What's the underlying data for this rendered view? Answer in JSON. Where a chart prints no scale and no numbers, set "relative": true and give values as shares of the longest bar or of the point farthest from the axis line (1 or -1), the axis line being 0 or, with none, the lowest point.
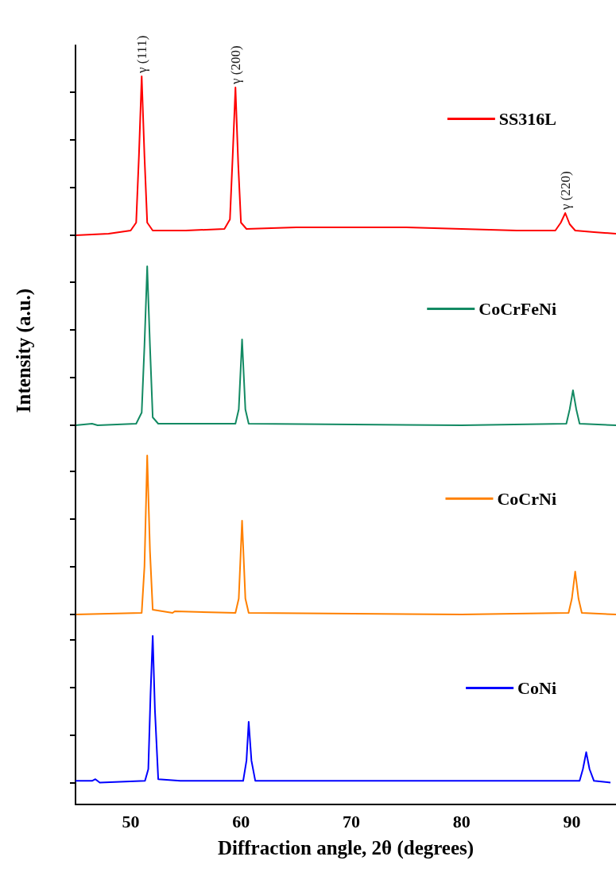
{
  "chart_data": [
    {
      "type": "line",
      "relative": true,
      "xlim": [
        45,
        94
      ],
      "legend": "right",
      "marker": "none",
      "grid": false,
      "tick_labels": false,
      "annotations": [
        {
          "text": "γ (111)",
          "x": 51.0,
          "y": 1
        },
        {
          "text": "γ (200)",
          "x": 59.5,
          "y": 0.93
        },
        {
          "text": "γ (220)",
          "x": 89.4,
          "y": 0.14
        }
      ],
      "series": [
        {
          "name": "SS316L",
          "color": "#ff0000",
          "x": [
            45,
            48,
            50,
            50.5,
            50.75,
            51.0,
            51.25,
            51.5,
            52,
            55,
            58.5,
            59,
            59.25,
            59.5,
            59.75,
            60,
            60.5,
            65,
            70,
            75,
            80,
            85,
            88.5,
            89,
            89.4,
            89.8,
            90.3,
            92,
            94
          ],
          "values": [
            0.0,
            0.01,
            0.03,
            0.08,
            0.5,
            1,
            0.5,
            0.08,
            0.03,
            0.03,
            0.04,
            0.1,
            0.5,
            0.93,
            0.45,
            0.08,
            0.04,
            0.05,
            0.05,
            0.05,
            0.04,
            0.03,
            0.03,
            0.08,
            0.14,
            0.07,
            0.03,
            0.02,
            0.01
          ]
        }
      ]
    },
    {
      "type": "line",
      "relative": true,
      "xlim": [
        45,
        94
      ],
      "legend": "right",
      "marker": "none",
      "grid": false,
      "tick_labels": false,
      "ylabel": "Intensity (a.u.)",
      "series": [
        {
          "name": "CoCrFeNi",
          "color": "#138a63",
          "x": [
            45,
            46.5,
            47,
            50.5,
            51,
            51.25,
            51.5,
            51.75,
            52,
            52.5,
            59.5,
            59.8,
            60.1,
            60.4,
            60.7,
            80,
            89.5,
            89.8,
            90.1,
            90.4,
            90.7,
            94
          ],
          "values": [
            0,
            0.01,
            0,
            0.01,
            0.08,
            0.5,
            1,
            0.5,
            0.05,
            0.01,
            0.01,
            0.1,
            0.54,
            0.1,
            0.01,
            0,
            0.01,
            0.1,
            0.22,
            0.1,
            0.01,
            0
          ]
        }
      ]
    },
    {
      "type": "line",
      "relative": true,
      "xlim": [
        45,
        94
      ],
      "legend": "right",
      "marker": "none",
      "grid": false,
      "tick_labels": false,
      "series": [
        {
          "name": "CoCrNi",
          "color": "#ff8000",
          "x": [
            45,
            51.0,
            51.25,
            51.5,
            51.75,
            52,
            53.8,
            54,
            59.5,
            59.8,
            60.1,
            60.4,
            60.7,
            80,
            89.7,
            90.0,
            90.3,
            90.6,
            90.9,
            94
          ],
          "values": [
            0,
            0.01,
            0.3,
            1,
            0.4,
            0.03,
            0.01,
            0.02,
            0.01,
            0.1,
            0.59,
            0.1,
            0.01,
            0,
            0.01,
            0.1,
            0.27,
            0.1,
            0.01,
            0
          ]
        }
      ]
    },
    {
      "type": "line",
      "relative": true,
      "xlim": [
        45,
        94
      ],
      "xticks": [
        50,
        60,
        70,
        80,
        90
      ],
      "legend": "right",
      "marker": "none",
      "grid": false,
      "tick_labels": "x",
      "xlabel": "Diffraction angle, 2θ (degrees)",
      "series": [
        {
          "name": "CoNi",
          "color": "#0000ff",
          "x": [
            45,
            46.5,
            46.8,
            47.2,
            51.3,
            51.6,
            51.8,
            52.0,
            52.2,
            52.5,
            54.5,
            60.2,
            60.5,
            60.7,
            60.95,
            61.3,
            80.8,
            90.7,
            91.0,
            91.3,
            91.6,
            92,
            93.5
          ],
          "values": [
            0.14,
            0.14,
            0.15,
            0.13,
            0.14,
            0.21,
            0.65,
            1,
            0.56,
            0.15,
            0.14,
            0.14,
            0.26,
            0.49,
            0.26,
            0.14,
            0.14,
            0.14,
            0.21,
            0.31,
            0.21,
            0.14,
            0.13
          ]
        }
      ]
    }
  ]
}
